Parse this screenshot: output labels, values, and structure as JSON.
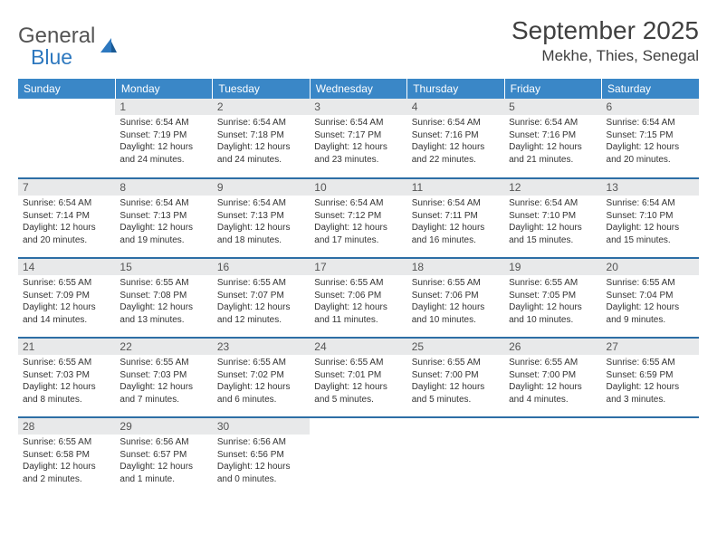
{
  "brand": {
    "name1": "General",
    "name2": "Blue"
  },
  "title": "September 2025",
  "location": "Mekhe, Thies, Senegal",
  "styling": {
    "header_bg": "#3a87c7",
    "header_text": "#ffffff",
    "daynum_bg": "#e8e9ea",
    "row_border": "#2d6ea5",
    "title_color": "#404040",
    "body_text": "#333333",
    "brand_gray": "#545454",
    "brand_blue": "#2d78bf",
    "font_family": "Arial",
    "month_title_fontsize": 28,
    "location_fontsize": 17,
    "th_fontsize": 12,
    "daynum_fontsize": 12,
    "body_fontsize": 10
  },
  "weekdays": [
    "Sunday",
    "Monday",
    "Tuesday",
    "Wednesday",
    "Thursday",
    "Friday",
    "Saturday"
  ],
  "grid": [
    [
      null,
      {
        "n": "1",
        "sr": "6:54 AM",
        "ss": "7:19 PM",
        "dl": "12 hours and 24 minutes."
      },
      {
        "n": "2",
        "sr": "6:54 AM",
        "ss": "7:18 PM",
        "dl": "12 hours and 24 minutes."
      },
      {
        "n": "3",
        "sr": "6:54 AM",
        "ss": "7:17 PM",
        "dl": "12 hours and 23 minutes."
      },
      {
        "n": "4",
        "sr": "6:54 AM",
        "ss": "7:16 PM",
        "dl": "12 hours and 22 minutes."
      },
      {
        "n": "5",
        "sr": "6:54 AM",
        "ss": "7:16 PM",
        "dl": "12 hours and 21 minutes."
      },
      {
        "n": "6",
        "sr": "6:54 AM",
        "ss": "7:15 PM",
        "dl": "12 hours and 20 minutes."
      }
    ],
    [
      {
        "n": "7",
        "sr": "6:54 AM",
        "ss": "7:14 PM",
        "dl": "12 hours and 20 minutes."
      },
      {
        "n": "8",
        "sr": "6:54 AM",
        "ss": "7:13 PM",
        "dl": "12 hours and 19 minutes."
      },
      {
        "n": "9",
        "sr": "6:54 AM",
        "ss": "7:13 PM",
        "dl": "12 hours and 18 minutes."
      },
      {
        "n": "10",
        "sr": "6:54 AM",
        "ss": "7:12 PM",
        "dl": "12 hours and 17 minutes."
      },
      {
        "n": "11",
        "sr": "6:54 AM",
        "ss": "7:11 PM",
        "dl": "12 hours and 16 minutes."
      },
      {
        "n": "12",
        "sr": "6:54 AM",
        "ss": "7:10 PM",
        "dl": "12 hours and 15 minutes."
      },
      {
        "n": "13",
        "sr": "6:54 AM",
        "ss": "7:10 PM",
        "dl": "12 hours and 15 minutes."
      }
    ],
    [
      {
        "n": "14",
        "sr": "6:55 AM",
        "ss": "7:09 PM",
        "dl": "12 hours and 14 minutes."
      },
      {
        "n": "15",
        "sr": "6:55 AM",
        "ss": "7:08 PM",
        "dl": "12 hours and 13 minutes."
      },
      {
        "n": "16",
        "sr": "6:55 AM",
        "ss": "7:07 PM",
        "dl": "12 hours and 12 minutes."
      },
      {
        "n": "17",
        "sr": "6:55 AM",
        "ss": "7:06 PM",
        "dl": "12 hours and 11 minutes."
      },
      {
        "n": "18",
        "sr": "6:55 AM",
        "ss": "7:06 PM",
        "dl": "12 hours and 10 minutes."
      },
      {
        "n": "19",
        "sr": "6:55 AM",
        "ss": "7:05 PM",
        "dl": "12 hours and 10 minutes."
      },
      {
        "n": "20",
        "sr": "6:55 AM",
        "ss": "7:04 PM",
        "dl": "12 hours and 9 minutes."
      }
    ],
    [
      {
        "n": "21",
        "sr": "6:55 AM",
        "ss": "7:03 PM",
        "dl": "12 hours and 8 minutes."
      },
      {
        "n": "22",
        "sr": "6:55 AM",
        "ss": "7:03 PM",
        "dl": "12 hours and 7 minutes."
      },
      {
        "n": "23",
        "sr": "6:55 AM",
        "ss": "7:02 PM",
        "dl": "12 hours and 6 minutes."
      },
      {
        "n": "24",
        "sr": "6:55 AM",
        "ss": "7:01 PM",
        "dl": "12 hours and 5 minutes."
      },
      {
        "n": "25",
        "sr": "6:55 AM",
        "ss": "7:00 PM",
        "dl": "12 hours and 5 minutes."
      },
      {
        "n": "26",
        "sr": "6:55 AM",
        "ss": "7:00 PM",
        "dl": "12 hours and 4 minutes."
      },
      {
        "n": "27",
        "sr": "6:55 AM",
        "ss": "6:59 PM",
        "dl": "12 hours and 3 minutes."
      }
    ],
    [
      {
        "n": "28",
        "sr": "6:55 AM",
        "ss": "6:58 PM",
        "dl": "12 hours and 2 minutes."
      },
      {
        "n": "29",
        "sr": "6:56 AM",
        "ss": "6:57 PM",
        "dl": "12 hours and 1 minute."
      },
      {
        "n": "30",
        "sr": "6:56 AM",
        "ss": "6:56 PM",
        "dl": "12 hours and 0 minutes."
      },
      null,
      null,
      null,
      null
    ]
  ],
  "labels": {
    "sunrise": "Sunrise:",
    "sunset": "Sunset:",
    "daylight": "Daylight:"
  }
}
